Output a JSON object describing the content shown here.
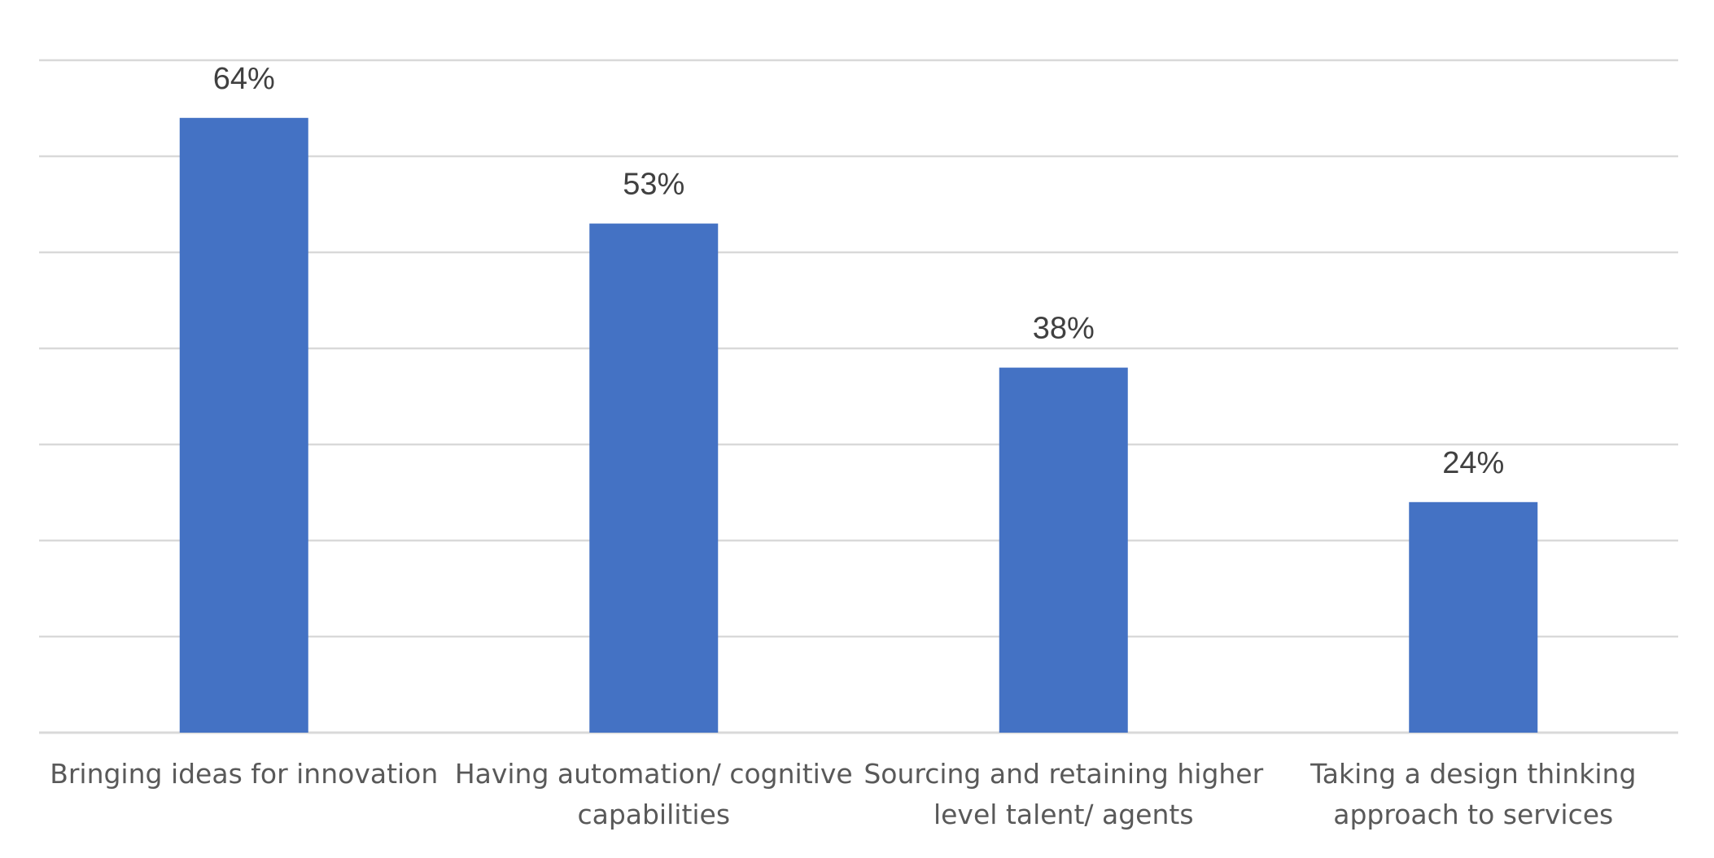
{
  "chart_data": {
    "type": "bar",
    "categories": [
      [
        "Bringing ideas for innovation"
      ],
      [
        "Having automation/ cognitive",
        "capabilities"
      ],
      [
        "Sourcing and retaining higher",
        "level talent/ agents"
      ],
      [
        "Taking a design thinking",
        "approach to services"
      ]
    ],
    "values": [
      64,
      53,
      38,
      24
    ],
    "data_labels": [
      "64%",
      "53%",
      "38%",
      "24%"
    ],
    "value_unit": "%",
    "ylim": [
      0,
      70
    ],
    "y_gridline_step": 10,
    "grid": true,
    "legend": "none",
    "y_axis_labels_shown": false,
    "bar_color": "#4472c4"
  }
}
